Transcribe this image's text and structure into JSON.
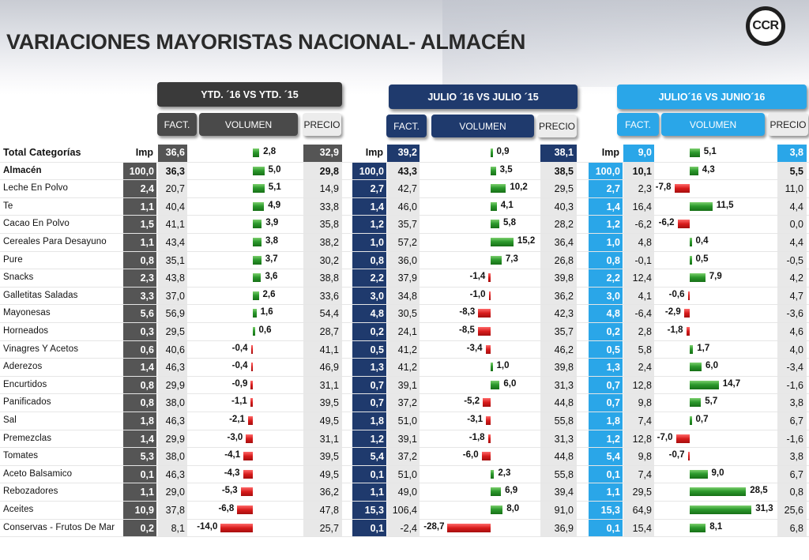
{
  "title": "VARIACIONES MAYORISTAS NACIONAL- ALMACÉN",
  "logo_text": "CCR",
  "sections": [
    {
      "header": "YTD. ´16 VS YTD. ´15",
      "fact": "FACT.",
      "volumen": "VOLUMEN",
      "precio": "PRECIO"
    },
    {
      "header": "JULIO ´16 VS  JULIO ´15",
      "fact": "FACT.",
      "volumen": "VOLUMEN",
      "precio": "PRECIO"
    },
    {
      "header": "JULIO´16 VS JUNIO´16",
      "fact": "FACT.",
      "volumen": "VOLUMEN",
      "precio": "PRECIO"
    }
  ],
  "total_row": {
    "label": "Total  Categorías",
    "imp1": "Imp",
    "fact1": "36,6",
    "vol1": "2,8",
    "prec1": "32,9",
    "imp2": "Imp",
    "fact2": "39,2",
    "vol2": "0,9",
    "prec2": "38,1",
    "imp3": "Imp",
    "fact3": "9,0",
    "vol3": "5,1",
    "prec3": "3,8"
  },
  "rows": [
    {
      "cat": "Almacén",
      "s": [
        [
          "100,0",
          "36,3",
          "5,0",
          "29,8"
        ],
        [
          "100,0",
          "43,3",
          "3,5",
          "38,5"
        ],
        [
          "100,0",
          "10,1",
          "4,3",
          "5,5"
        ]
      ]
    },
    {
      "cat": "Leche En Polvo",
      "s": [
        [
          "2,4",
          "20,7",
          "5,1",
          "14,9"
        ],
        [
          "2,7",
          "42,7",
          "10,2",
          "29,5"
        ],
        [
          "2,7",
          "2,3",
          "-7,8",
          "11,0"
        ]
      ]
    },
    {
      "cat": "Te",
      "s": [
        [
          "1,1",
          "40,4",
          "4,9",
          "33,8"
        ],
        [
          "1,4",
          "46,0",
          "4,1",
          "40,3"
        ],
        [
          "1,4",
          "16,4",
          "11,5",
          "4,4"
        ]
      ]
    },
    {
      "cat": "Cacao En Polvo",
      "s": [
        [
          "1,5",
          "41,1",
          "3,9",
          "35,8"
        ],
        [
          "1,2",
          "35,7",
          "5,8",
          "28,2"
        ],
        [
          "1,2",
          "-6,2",
          "-6,2",
          "0,0"
        ]
      ]
    },
    {
      "cat": "Cereales Para Desayuno",
      "s": [
        [
          "1,1",
          "43,4",
          "3,8",
          "38,2"
        ],
        [
          "1,0",
          "57,2",
          "15,2",
          "36,4"
        ],
        [
          "1,0",
          "4,8",
          "0,4",
          "4,4"
        ]
      ]
    },
    {
      "cat": "Pure",
      "s": [
        [
          "0,8",
          "35,1",
          "3,7",
          "30,2"
        ],
        [
          "0,8",
          "36,0",
          "7,3",
          "26,8"
        ],
        [
          "0,8",
          "-0,1",
          "0,5",
          "-0,5"
        ]
      ]
    },
    {
      "cat": "Snacks",
      "s": [
        [
          "2,3",
          "43,8",
          "3,6",
          "38,8"
        ],
        [
          "2,2",
          "37,9",
          "-1,4",
          "39,8"
        ],
        [
          "2,2",
          "12,4",
          "7,9",
          "4,2"
        ]
      ]
    },
    {
      "cat": "Galletitas Saladas",
      "s": [
        [
          "3,3",
          "37,0",
          "2,6",
          "33,6"
        ],
        [
          "3,0",
          "34,8",
          "-1,0",
          "36,2"
        ],
        [
          "3,0",
          "4,1",
          "-0,6",
          "4,7"
        ]
      ]
    },
    {
      "cat": "Mayonesas",
      "s": [
        [
          "5,6",
          "56,9",
          "1,6",
          "54,4"
        ],
        [
          "4,8",
          "30,5",
          "-8,3",
          "42,3"
        ],
        [
          "4,8",
          "-6,4",
          "-2,9",
          "-3,6"
        ]
      ]
    },
    {
      "cat": "Horneados",
      "s": [
        [
          "0,3",
          "29,5",
          "0,6",
          "28,7"
        ],
        [
          "0,2",
          "24,1",
          "-8,5",
          "35,7"
        ],
        [
          "0,2",
          "2,8",
          "-1,8",
          "4,6"
        ]
      ]
    },
    {
      "cat": "Vinagres Y Acetos",
      "s": [
        [
          "0,6",
          "40,6",
          "-0,4",
          "41,1"
        ],
        [
          "0,5",
          "41,2",
          "-3,4",
          "46,2"
        ],
        [
          "0,5",
          "5,8",
          "1,7",
          "4,0"
        ]
      ]
    },
    {
      "cat": "Aderezos",
      "s": [
        [
          "1,4",
          "46,3",
          "-0,4",
          "46,9"
        ],
        [
          "1,3",
          "41,2",
          "1,0",
          "39,8"
        ],
        [
          "1,3",
          "2,4",
          "6,0",
          "-3,4"
        ]
      ]
    },
    {
      "cat": "Encurtidos",
      "s": [
        [
          "0,8",
          "29,9",
          "-0,9",
          "31,1"
        ],
        [
          "0,7",
          "39,1",
          "6,0",
          "31,3"
        ],
        [
          "0,7",
          "12,8",
          "14,7",
          "-1,6"
        ]
      ]
    },
    {
      "cat": "Panificados",
      "s": [
        [
          "0,8",
          "38,0",
          "-1,1",
          "39,5"
        ],
        [
          "0,7",
          "37,2",
          "-5,2",
          "44,8"
        ],
        [
          "0,7",
          "9,8",
          "5,7",
          "3,8"
        ]
      ]
    },
    {
      "cat": "Sal",
      "s": [
        [
          "1,8",
          "46,3",
          "-2,1",
          "49,5"
        ],
        [
          "1,8",
          "51,0",
          "-3,1",
          "55,8"
        ],
        [
          "1,8",
          "7,4",
          "0,7",
          "6,7"
        ]
      ]
    },
    {
      "cat": "Premezclas",
      "s": [
        [
          "1,4",
          "29,9",
          "-3,0",
          "31,1"
        ],
        [
          "1,2",
          "39,1",
          "-1,8",
          "31,3"
        ],
        [
          "1,2",
          "12,8",
          "-7,0",
          "-1,6"
        ]
      ]
    },
    {
      "cat": "Tomates",
      "s": [
        [
          "5,3",
          "38,0",
          "-4,1",
          "39,5"
        ],
        [
          "5,4",
          "37,2",
          "-6,0",
          "44,8"
        ],
        [
          "5,4",
          "9,8",
          "-0,7",
          "3,8"
        ]
      ]
    },
    {
      "cat": "Aceto Balsamico",
      "s": [
        [
          "0,1",
          "46,3",
          "-4,3",
          "49,5"
        ],
        [
          "0,1",
          "51,0",
          "2,3",
          "55,8"
        ],
        [
          "0,1",
          "7,4",
          "9,0",
          "6,7"
        ]
      ]
    },
    {
      "cat": "Rebozadores",
      "s": [
        [
          "1,1",
          "29,0",
          "-5,3",
          "36,2"
        ],
        [
          "1,1",
          "49,0",
          "6,9",
          "39,4"
        ],
        [
          "1,1",
          "29,5",
          "28,5",
          "0,8"
        ]
      ]
    },
    {
      "cat": "Aceites",
      "s": [
        [
          "10,9",
          "37,8",
          "-6,8",
          "47,8"
        ],
        [
          "15,3",
          "106,4",
          "8,0",
          "91,0"
        ],
        [
          "15,3",
          "64,9",
          "31,3",
          "25,6"
        ]
      ]
    },
    {
      "cat": "Conservas - Frutos De Mar",
      "s": [
        [
          "0,2",
          "8,1",
          "-14,0",
          "25,7"
        ],
        [
          "0,1",
          "-2,4",
          "-28,7",
          "36,9"
        ],
        [
          "0,1",
          "15,4",
          "8,1",
          "6,8"
        ]
      ]
    }
  ],
  "colors": {
    "imp_dark": "#4e4e4e",
    "ytd_header": "#3a3a3a",
    "jul_header": "#1f3a6d",
    "jun_header": "#2aa6e8",
    "bar_pos": "#1e8a1e",
    "bar_neg": "#cc1111"
  }
}
